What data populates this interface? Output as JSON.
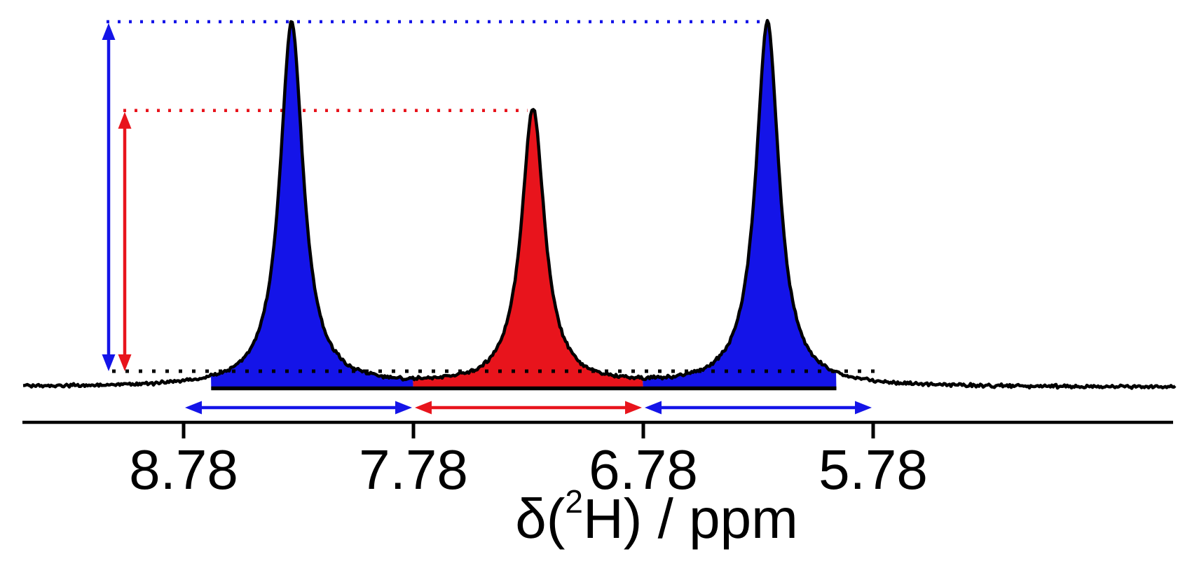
{
  "figure": {
    "background": "#ffffff",
    "colors": {
      "blue": "#1414e8",
      "red": "#e8141c",
      "trace": "#000000"
    },
    "axis_title": {
      "prefix": "δ(",
      "superscript": "2",
      "suffix": "H) / ppm"
    },
    "chart_data": {
      "type": "line",
      "description": "2H NMR spectrum: three Lorentzian peaks on a noisy flat baseline; outer two peaks shaded blue, central peak shaded red; dotted guide lines mark peak tops and baseline; double-headed arrows mark peak heights (left) and 1-ppm integration spans (below baseline)",
      "title": "",
      "xlabel": "δ(2H) / ppm",
      "ylabel": "",
      "x_axis": {
        "tick_values": [
          8.78,
          7.78,
          6.78,
          5.78
        ],
        "tick_labels": [
          "8.78",
          "7.78",
          "6.78",
          "5.78"
        ],
        "range_approx": [
          9.6,
          4.5
        ],
        "direction": "decreasing-to-right",
        "grid": false
      },
      "y_axis": {
        "shown": false
      },
      "peaks": [
        {
          "ppm": 8.31,
          "relative_height": 1.0,
          "width_ppm": 0.061,
          "fill_color": "blue"
        },
        {
          "ppm": 7.26,
          "relative_height": 0.76,
          "width_ppm": 0.061,
          "fill_color": "red"
        },
        {
          "ppm": 6.24,
          "relative_height": 1.0,
          "width_ppm": 0.061,
          "fill_color": "blue"
        }
      ],
      "integral_regions": [
        {
          "ppm_from": 8.66,
          "ppm_to": 7.78,
          "color": "blue"
        },
        {
          "ppm_from": 7.78,
          "ppm_to": 6.78,
          "color": "red"
        },
        {
          "ppm_from": 6.78,
          "ppm_to": 5.94,
          "color": "blue"
        }
      ],
      "span_arrows": [
        {
          "ppm_from": 8.78,
          "ppm_to": 7.78,
          "color": "blue"
        },
        {
          "ppm_from": 7.78,
          "ppm_to": 6.78,
          "color": "red"
        },
        {
          "ppm_from": 6.78,
          "ppm_to": 5.78,
          "color": "blue"
        }
      ],
      "height_arrows": [
        {
          "color": "blue",
          "relative_height": 1.0
        },
        {
          "color": "red",
          "relative_height": 0.76
        }
      ],
      "dotted_guides": [
        {
          "color": "blue",
          "level": "blue-peak-top"
        },
        {
          "color": "red",
          "level": "red-peak-top"
        },
        {
          "color": "black",
          "level": "baseline"
        }
      ]
    }
  }
}
